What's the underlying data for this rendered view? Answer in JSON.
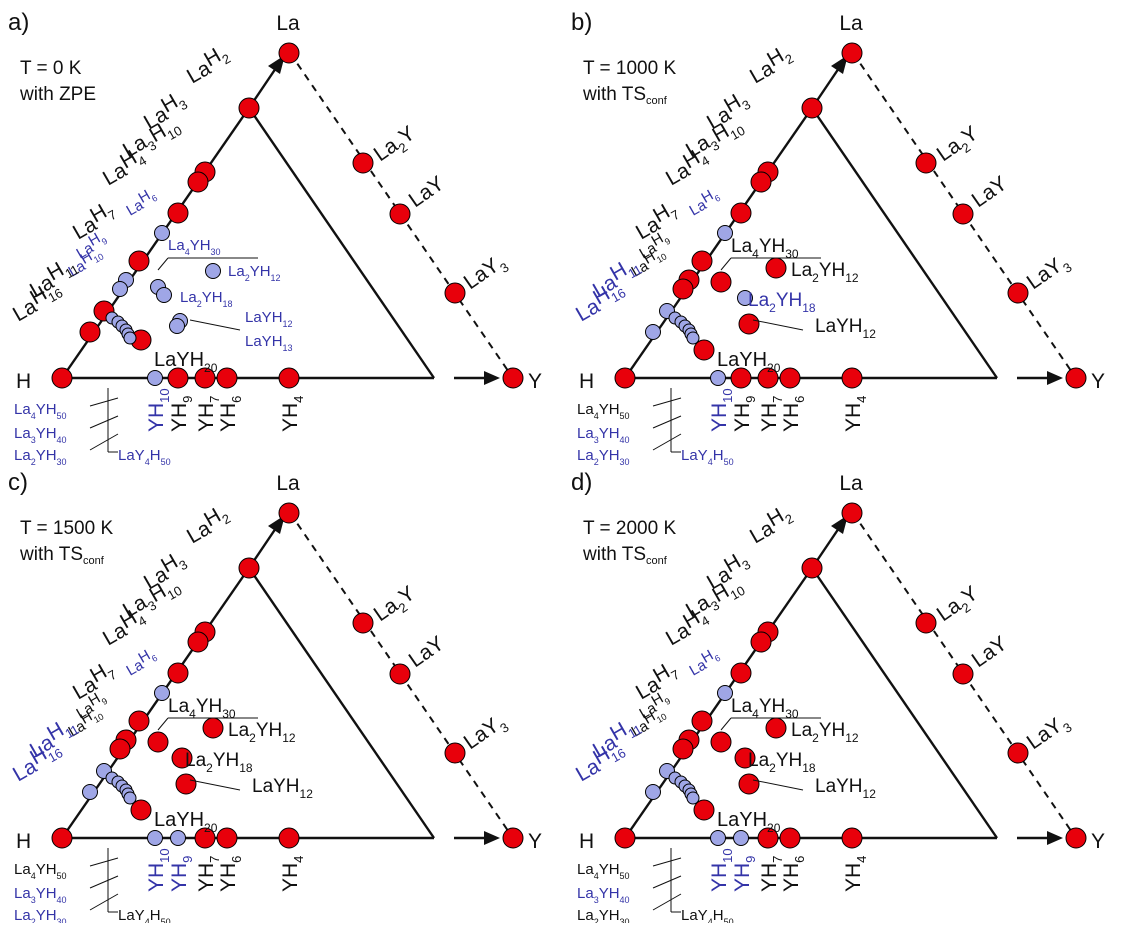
{
  "colors": {
    "stable": "#e8000b",
    "metastable": "#9fa6e6",
    "label_stable": "#111111",
    "label_metastable": "#3434a8",
    "line": "#111111"
  },
  "vertex_labels": {
    "H": "H",
    "La": "La",
    "Y": "Y"
  },
  "panels": [
    {
      "tag": "a)",
      "condition": {
        "line1": "T = 0 K",
        "line2_prefix": "with ",
        "line2_main": "ZPE",
        "line2_sub": ""
      },
      "binary_la_y": [
        {
          "main": [
            "La",
            "Y"
          ],
          "sub": [
            "2",
            ""
          ]
        },
        {
          "main": [
            "LaY"
          ],
          "sub": [
            ""
          ]
        },
        {
          "main": [
            "LaY"
          ],
          "sub": [
            "3"
          ]
        }
      ],
      "la_h_labels": [
        {
          "text": [
            "La",
            "H"
          ],
          "sub": [
            "",
            "2"
          ],
          "c": "s"
        },
        {
          "text": [
            "La",
            "H"
          ],
          "sub": [
            "",
            "3"
          ],
          "c": "s"
        },
        {
          "text": [
            "La",
            "H"
          ],
          "sub": [
            "3",
            "10"
          ],
          "c": "s"
        },
        {
          "text": [
            "La",
            "H"
          ],
          "sub": [
            "",
            "4"
          ],
          "c": "s"
        },
        {
          "text": [
            "La",
            "H"
          ],
          "sub": [
            "",
            "6"
          ],
          "c": "m"
        },
        {
          "text": [
            "La",
            "H"
          ],
          "sub": [
            "",
            "7"
          ],
          "c": "s"
        },
        {
          "text": [
            "La",
            "H"
          ],
          "sub": [
            "",
            "9"
          ],
          "c": "m"
        },
        {
          "text": [
            "La",
            "H"
          ],
          "sub": [
            "",
            "10"
          ],
          "c": "m"
        },
        {
          "text": [
            "La",
            "H"
          ],
          "sub": [
            "",
            "11"
          ],
          "c": "s"
        },
        {
          "text": [
            "La",
            "H"
          ],
          "sub": [
            "",
            "16"
          ],
          "c": "s"
        }
      ],
      "y_h_labels": [
        {
          "text": [
            "YH"
          ],
          "sub": [
            "10"
          ],
          "c": "m"
        },
        {
          "text": [
            "YH"
          ],
          "sub": [
            "9"
          ],
          "c": "s"
        },
        {
          "text": [
            "YH"
          ],
          "sub": [
            "7"
          ],
          "c": "s"
        },
        {
          "text": [
            "YH"
          ],
          "sub": [
            "6"
          ],
          "c": "s"
        },
        {
          "text": [
            "YH"
          ],
          "sub": [
            "4"
          ],
          "c": "s"
        }
      ],
      "ternary_labels": [
        {
          "text": [
            "La",
            "YH"
          ],
          "sub": [
            "4",
            "30"
          ],
          "c": "m"
        },
        {
          "text": [
            "La",
            "YH"
          ],
          "sub": [
            "2",
            "12"
          ],
          "c": "m"
        },
        {
          "text": [
            "La",
            "YH"
          ],
          "sub": [
            "2",
            "18"
          ],
          "c": "m"
        },
        {
          "text": [
            "LaYH"
          ],
          "sub": [
            "12"
          ],
          "c": "m"
        },
        {
          "text": [
            "LaYH"
          ],
          "sub": [
            "13"
          ],
          "c": "m"
        },
        {
          "text": [
            "LaYH"
          ],
          "sub": [
            "20"
          ],
          "c": "s"
        }
      ],
      "bottom_labels": [
        {
          "text": [
            "La",
            "YH"
          ],
          "sub": [
            "4",
            "50"
          ],
          "c": "m"
        },
        {
          "text": [
            "La",
            "YH"
          ],
          "sub": [
            "3",
            "40"
          ],
          "c": "m"
        },
        {
          "text": [
            "La",
            "YH"
          ],
          "sub": [
            "2",
            "30"
          ],
          "c": "m"
        },
        {
          "text": [
            "LaY",
            "H"
          ],
          "sub": [
            "4",
            "50"
          ],
          "c": "m"
        }
      ]
    },
    {
      "tag": "b)",
      "condition": {
        "line1": "T = 1000 K",
        "line2_prefix": "with ",
        "line2_main": "TS",
        "line2_sub": "conf"
      },
      "binary_la_y": [
        {
          "main": [
            "La",
            "Y"
          ],
          "sub": [
            "2",
            ""
          ]
        },
        {
          "main": [
            "LaY"
          ],
          "sub": [
            ""
          ]
        },
        {
          "main": [
            "LaY"
          ],
          "sub": [
            "3"
          ]
        }
      ],
      "la_h_labels": [
        {
          "text": [
            "La",
            "H"
          ],
          "sub": [
            "",
            "2"
          ],
          "c": "s"
        },
        {
          "text": [
            "La",
            "H"
          ],
          "sub": [
            "",
            "3"
          ],
          "c": "s"
        },
        {
          "text": [
            "La",
            "H"
          ],
          "sub": [
            "3",
            "10"
          ],
          "c": "s"
        },
        {
          "text": [
            "La",
            "H"
          ],
          "sub": [
            "",
            "4"
          ],
          "c": "s"
        },
        {
          "text": [
            "La",
            "H"
          ],
          "sub": [
            "",
            "6"
          ],
          "c": "m"
        },
        {
          "text": [
            "La",
            "H"
          ],
          "sub": [
            "",
            "7"
          ],
          "c": "s"
        },
        {
          "text": [
            "La",
            "H"
          ],
          "sub": [
            "",
            "9"
          ],
          "c": "s"
        },
        {
          "text": [
            "La",
            "H"
          ],
          "sub": [
            "",
            "10"
          ],
          "c": "s"
        },
        {
          "text": [
            "La",
            "H"
          ],
          "sub": [
            "",
            "11"
          ],
          "c": "m"
        },
        {
          "text": [
            "La",
            "H"
          ],
          "sub": [
            "",
            "16"
          ],
          "c": "m"
        }
      ],
      "y_h_labels": [
        {
          "text": [
            "YH"
          ],
          "sub": [
            "10"
          ],
          "c": "m"
        },
        {
          "text": [
            "YH"
          ],
          "sub": [
            "9"
          ],
          "c": "s"
        },
        {
          "text": [
            "YH"
          ],
          "sub": [
            "7"
          ],
          "c": "s"
        },
        {
          "text": [
            "YH"
          ],
          "sub": [
            "6"
          ],
          "c": "s"
        },
        {
          "text": [
            "YH"
          ],
          "sub": [
            "4"
          ],
          "c": "s"
        }
      ],
      "ternary_labels": [
        {
          "text": [
            "La",
            "YH"
          ],
          "sub": [
            "4",
            "30"
          ],
          "c": "s"
        },
        {
          "text": [
            "La",
            "YH"
          ],
          "sub": [
            "2",
            "12"
          ],
          "c": "s"
        },
        {
          "text": [
            "La",
            "YH"
          ],
          "sub": [
            "2",
            "18"
          ],
          "c": "m"
        },
        {
          "text": [
            "LaYH"
          ],
          "sub": [
            "12"
          ],
          "c": "s"
        },
        {
          "text": [
            "LaYH"
          ],
          "sub": [
            "20"
          ],
          "c": "s"
        }
      ],
      "bottom_labels": [
        {
          "text": [
            "La",
            "YH"
          ],
          "sub": [
            "4",
            "50"
          ],
          "c": "s"
        },
        {
          "text": [
            "La",
            "YH"
          ],
          "sub": [
            "3",
            "40"
          ],
          "c": "m"
        },
        {
          "text": [
            "La",
            "YH"
          ],
          "sub": [
            "2",
            "30"
          ],
          "c": "m"
        },
        {
          "text": [
            "LaY",
            "H"
          ],
          "sub": [
            "4",
            "50"
          ],
          "c": "m"
        }
      ]
    },
    {
      "tag": "c)",
      "condition": {
        "line1": "T = 1500 K",
        "line2_prefix": "with ",
        "line2_main": "TS",
        "line2_sub": "conf"
      },
      "binary_la_y": [
        {
          "main": [
            "La",
            "Y"
          ],
          "sub": [
            "2",
            ""
          ]
        },
        {
          "main": [
            "LaY"
          ],
          "sub": [
            ""
          ]
        },
        {
          "main": [
            "LaY"
          ],
          "sub": [
            "3"
          ]
        }
      ],
      "la_h_labels": [
        {
          "text": [
            "La",
            "H"
          ],
          "sub": [
            "",
            "2"
          ],
          "c": "s"
        },
        {
          "text": [
            "La",
            "H"
          ],
          "sub": [
            "",
            "3"
          ],
          "c": "s"
        },
        {
          "text": [
            "La",
            "H"
          ],
          "sub": [
            "3",
            "10"
          ],
          "c": "s"
        },
        {
          "text": [
            "La",
            "H"
          ],
          "sub": [
            "",
            "4"
          ],
          "c": "s"
        },
        {
          "text": [
            "La",
            "H"
          ],
          "sub": [
            "",
            "6"
          ],
          "c": "m"
        },
        {
          "text": [
            "La",
            "H"
          ],
          "sub": [
            "",
            "7"
          ],
          "c": "s"
        },
        {
          "text": [
            "La",
            "H"
          ],
          "sub": [
            "",
            "9"
          ],
          "c": "s"
        },
        {
          "text": [
            "La",
            "H"
          ],
          "sub": [
            "",
            "10"
          ],
          "c": "s"
        },
        {
          "text": [
            "La",
            "H"
          ],
          "sub": [
            "",
            "11"
          ],
          "c": "m"
        },
        {
          "text": [
            "La",
            "H"
          ],
          "sub": [
            "",
            "16"
          ],
          "c": "m"
        }
      ],
      "y_h_labels": [
        {
          "text": [
            "YH"
          ],
          "sub": [
            "10"
          ],
          "c": "m"
        },
        {
          "text": [
            "YH"
          ],
          "sub": [
            "9"
          ],
          "c": "m"
        },
        {
          "text": [
            "YH"
          ],
          "sub": [
            "7"
          ],
          "c": "s"
        },
        {
          "text": [
            "YH"
          ],
          "sub": [
            "6"
          ],
          "c": "s"
        },
        {
          "text": [
            "YH"
          ],
          "sub": [
            "4"
          ],
          "c": "s"
        }
      ],
      "ternary_labels": [
        {
          "text": [
            "La",
            "YH"
          ],
          "sub": [
            "4",
            "30"
          ],
          "c": "s"
        },
        {
          "text": [
            "La",
            "YH"
          ],
          "sub": [
            "2",
            "12"
          ],
          "c": "s"
        },
        {
          "text": [
            "La",
            "YH"
          ],
          "sub": [
            "2",
            "18"
          ],
          "c": "s"
        },
        {
          "text": [
            "LaYH"
          ],
          "sub": [
            "12"
          ],
          "c": "s"
        },
        {
          "text": [
            "LaYH"
          ],
          "sub": [
            "20"
          ],
          "c": "s"
        }
      ],
      "bottom_labels": [
        {
          "text": [
            "La",
            "YH"
          ],
          "sub": [
            "4",
            "50"
          ],
          "c": "s"
        },
        {
          "text": [
            "La",
            "YH"
          ],
          "sub": [
            "3",
            "40"
          ],
          "c": "m"
        },
        {
          "text": [
            "La",
            "YH"
          ],
          "sub": [
            "2",
            "30"
          ],
          "c": "m"
        },
        {
          "text": [
            "LaY",
            "H"
          ],
          "sub": [
            "4",
            "50"
          ],
          "c": "s"
        }
      ]
    },
    {
      "tag": "d)",
      "condition": {
        "line1": "T = 2000 K",
        "line2_prefix": "with ",
        "line2_main": "TS",
        "line2_sub": "conf"
      },
      "binary_la_y": [
        {
          "main": [
            "La",
            "Y"
          ],
          "sub": [
            "2",
            ""
          ]
        },
        {
          "main": [
            "LaY"
          ],
          "sub": [
            ""
          ]
        },
        {
          "main": [
            "LaY"
          ],
          "sub": [
            "3"
          ]
        }
      ],
      "la_h_labels": [
        {
          "text": [
            "La",
            "H"
          ],
          "sub": [
            "",
            "2"
          ],
          "c": "s"
        },
        {
          "text": [
            "La",
            "H"
          ],
          "sub": [
            "",
            "3"
          ],
          "c": "s"
        },
        {
          "text": [
            "La",
            "H"
          ],
          "sub": [
            "3",
            "10"
          ],
          "c": "s"
        },
        {
          "text": [
            "La",
            "H"
          ],
          "sub": [
            "",
            "4"
          ],
          "c": "s"
        },
        {
          "text": [
            "La",
            "H"
          ],
          "sub": [
            "",
            "6"
          ],
          "c": "m"
        },
        {
          "text": [
            "La",
            "H"
          ],
          "sub": [
            "",
            "7"
          ],
          "c": "s"
        },
        {
          "text": [
            "La",
            "H"
          ],
          "sub": [
            "",
            "9"
          ],
          "c": "s"
        },
        {
          "text": [
            "La",
            "H"
          ],
          "sub": [
            "",
            "10"
          ],
          "c": "s"
        },
        {
          "text": [
            "La",
            "H"
          ],
          "sub": [
            "",
            "11"
          ],
          "c": "m"
        },
        {
          "text": [
            "La",
            "H"
          ],
          "sub": [
            "",
            "16"
          ],
          "c": "m"
        }
      ],
      "y_h_labels": [
        {
          "text": [
            "YH"
          ],
          "sub": [
            "10"
          ],
          "c": "m"
        },
        {
          "text": [
            "YH"
          ],
          "sub": [
            "9"
          ],
          "c": "m"
        },
        {
          "text": [
            "YH"
          ],
          "sub": [
            "7"
          ],
          "c": "s"
        },
        {
          "text": [
            "YH"
          ],
          "sub": [
            "6"
          ],
          "c": "s"
        },
        {
          "text": [
            "YH"
          ],
          "sub": [
            "4"
          ],
          "c": "s"
        }
      ],
      "ternary_labels": [
        {
          "text": [
            "La",
            "YH"
          ],
          "sub": [
            "4",
            "30"
          ],
          "c": "s"
        },
        {
          "text": [
            "La",
            "YH"
          ],
          "sub": [
            "2",
            "12"
          ],
          "c": "s"
        },
        {
          "text": [
            "La",
            "YH"
          ],
          "sub": [
            "2",
            "18"
          ],
          "c": "s"
        },
        {
          "text": [
            "LaYH"
          ],
          "sub": [
            "12"
          ],
          "c": "s"
        },
        {
          "text": [
            "LaYH"
          ],
          "sub": [
            "20"
          ],
          "c": "s"
        }
      ],
      "bottom_labels": [
        {
          "text": [
            "La",
            "YH"
          ],
          "sub": [
            "4",
            "50"
          ],
          "c": "s"
        },
        {
          "text": [
            "La",
            "YH"
          ],
          "sub": [
            "3",
            "40"
          ],
          "c": "m"
        },
        {
          "text": [
            "La",
            "YH"
          ],
          "sub": [
            "2",
            "30"
          ],
          "c": "s"
        },
        {
          "text": [
            "LaY",
            "H"
          ],
          "sub": [
            "4",
            "50"
          ],
          "c": "s"
        }
      ]
    }
  ]
}
